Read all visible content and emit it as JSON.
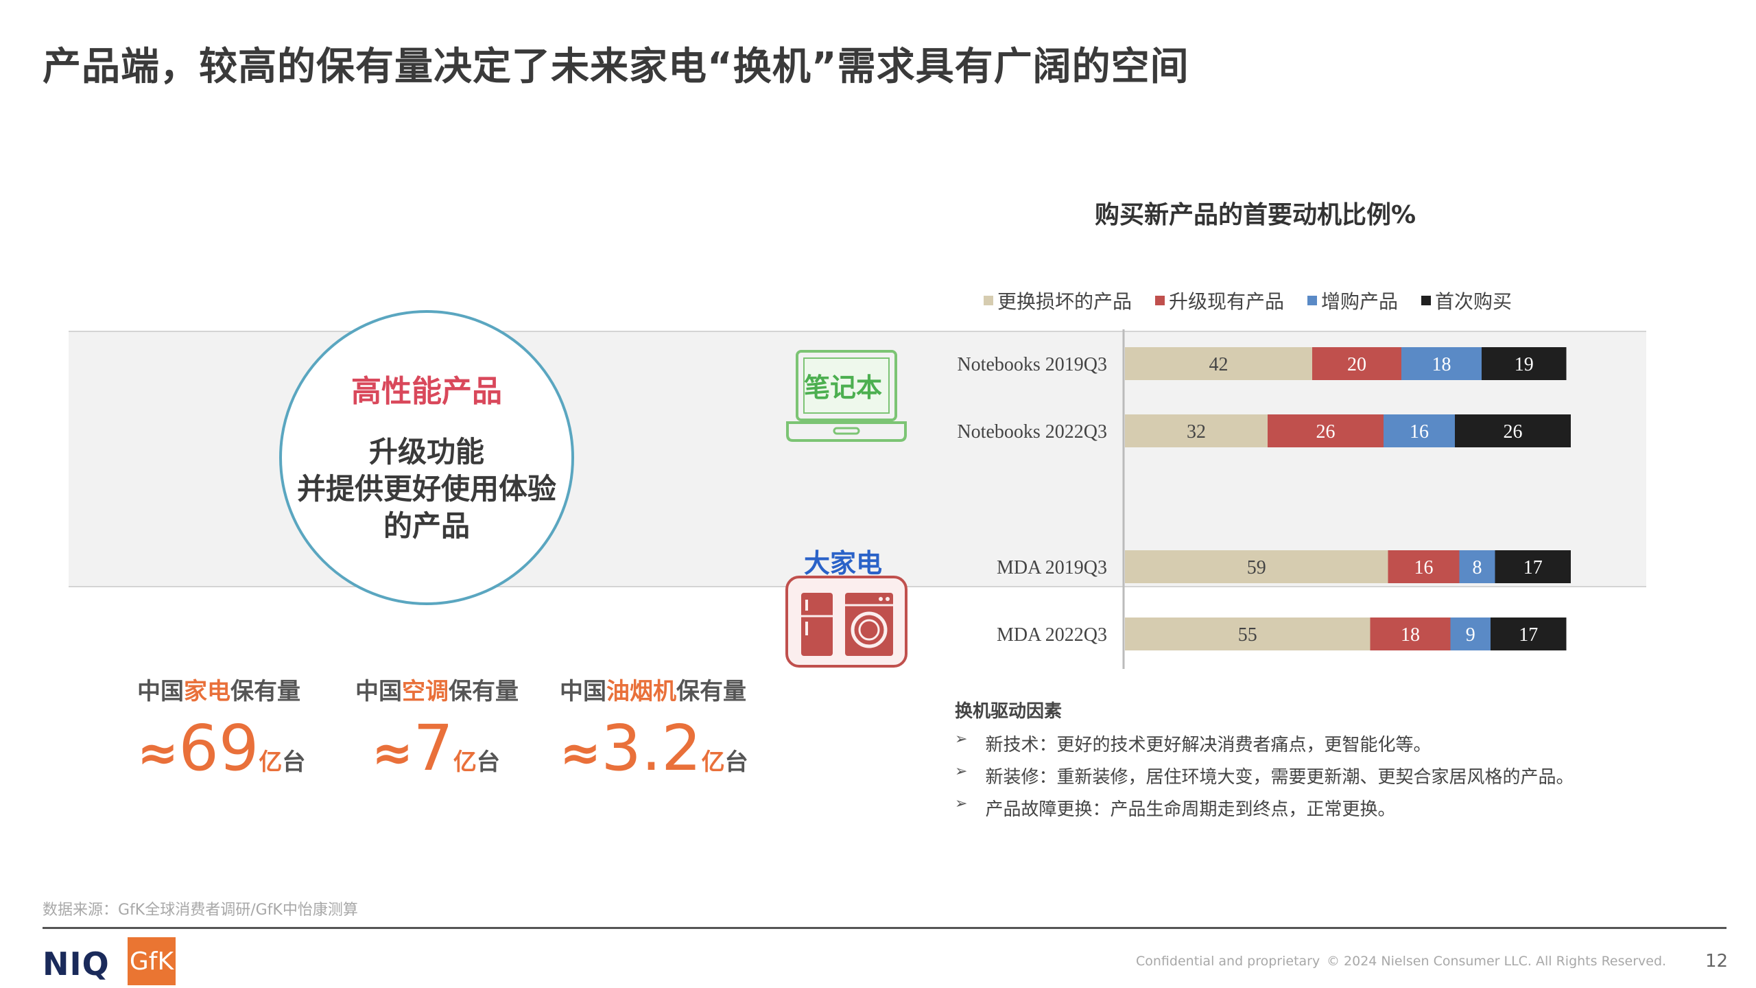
{
  "title": "产品端，较高的保有量决定了未来家电“换机”需求具有广阔的空间",
  "circle": {
    "heading": "高性能产品",
    "lines": [
      "升级功能",
      "并提供更好使用体验",
      "的产品"
    ]
  },
  "icons": {
    "notebook_label": "笔记本",
    "mda_label": "大家电"
  },
  "chart_data": {
    "type": "bar",
    "orientation": "horizontal",
    "stacked": true,
    "title": "购买新产品的首要动机比例%",
    "categories": [
      "Notebooks 2019Q3",
      "Notebooks 2022Q3",
      "MDA 2019Q3",
      "MDA 2022Q3"
    ],
    "series": [
      {
        "name": "更换损坏的产品",
        "color": "#d6ccb0",
        "values": [
          42,
          32,
          59,
          55
        ]
      },
      {
        "name": "升级现有产品",
        "color": "#c0504d",
        "values": [
          20,
          26,
          16,
          18
        ]
      },
      {
        "name": "增购产品",
        "color": "#5a8ac6",
        "values": [
          18,
          16,
          8,
          9
        ]
      },
      {
        "name": "首次购买",
        "color": "#1f1f1f",
        "values": [
          19,
          26,
          17,
          17
        ]
      }
    ],
    "legend_position": "top"
  },
  "stats": [
    {
      "prefix": "中国",
      "highlight": "家电",
      "suffix": "保有量",
      "approx": "≈",
      "value": "69",
      "unit_a": "亿",
      "unit_b": "台"
    },
    {
      "prefix": "中国",
      "highlight": "空调",
      "suffix": "保有量",
      "approx": "≈",
      "value": "7",
      "unit_a": "亿",
      "unit_b": "台"
    },
    {
      "prefix": "中国",
      "highlight": "油烟机",
      "suffix": "保有量",
      "approx": "≈",
      "value": "3.2",
      "unit_a": "亿",
      "unit_b": "台"
    }
  ],
  "drivers": {
    "title": "换机驱动因素",
    "items": [
      "新技术：更好的技术更好解决消费者痛点，更智能化等。",
      "新装修：重新装修，居住环境大变，需要更新潮、更契合家居风格的产品。",
      "产品故障更换：产品生命周期走到终点，正常更换。"
    ],
    "bullet": "➢"
  },
  "footer": {
    "source": "数据来源：GfK全球消费者调研/GfK中怡康测算",
    "niq": "NIQ",
    "gfk": "GfK",
    "confidential": "Confidential and proprietary",
    "copyright": "© 2024 Nielsen Consumer LLC. All Rights Reserved.",
    "page": "12"
  },
  "colors": {
    "accent_orange": "#e9703a",
    "accent_red": "#d9485b",
    "circle_border": "#5aa6c0",
    "notebook_green": "#4caf50",
    "mda_blue": "#2a62c8"
  }
}
